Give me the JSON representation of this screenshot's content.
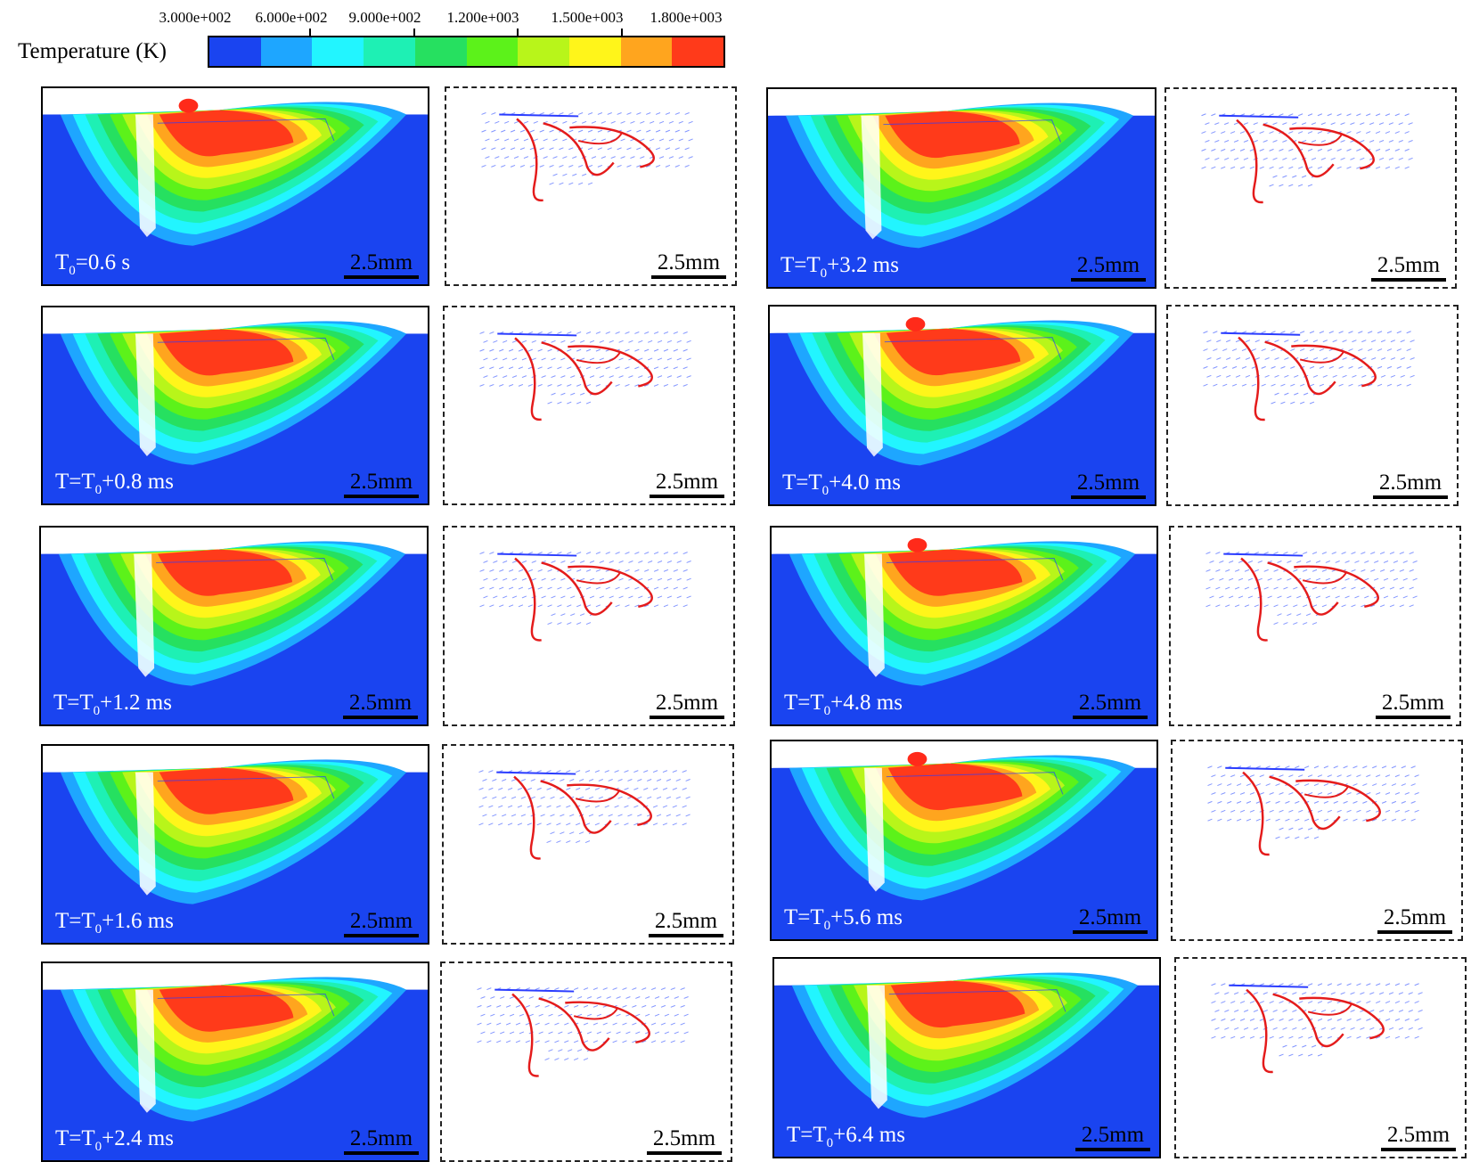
{
  "colorbar": {
    "title": "Temperature (K)",
    "ticks": [
      "3.000e+002",
      "6.000e+002",
      "9.000e+002",
      "1.200e+003",
      "1.500e+003",
      "1.800e+003"
    ],
    "colors": [
      "#1a44f0",
      "#1ea6ff",
      "#22f5ff",
      "#1ef0b4",
      "#26e060",
      "#5cf21a",
      "#b8f51a",
      "#fff51a",
      "#ffa51e",
      "#ff3a1a"
    ]
  },
  "scale_label": "2.5mm",
  "panels": [
    {
      "time": "T0=0.6 s",
      "prefix": "T",
      "sub": "0",
      "suffix": "=0.6 s"
    },
    {
      "time": "T=T0+0.8 ms",
      "prefix": "T=T",
      "sub": "0",
      "suffix": "+0.8 ms"
    },
    {
      "time": "T=T0+1.2 ms",
      "prefix": "T=T",
      "sub": "0",
      "suffix": "+1.2 ms"
    },
    {
      "time": "T=T0+1.6 ms",
      "prefix": "T=T",
      "sub": "0",
      "suffix": "+1.6 ms"
    },
    {
      "time": "T=T0+2.4 ms",
      "prefix": "T=T",
      "sub": "0",
      "suffix": "+2.4 ms"
    },
    {
      "time": "T=T0+3.2 ms",
      "prefix": "T=T",
      "sub": "0",
      "suffix": "+3.2 ms"
    },
    {
      "time": "T=T0+4.0 ms",
      "prefix": "T=T",
      "sub": "0",
      "suffix": "+4.0 ms"
    },
    {
      "time": "T=T0+4.8 ms",
      "prefix": "T=T",
      "sub": "0",
      "suffix": "+4.8 ms"
    },
    {
      "time": "T=T0+5.6 ms",
      "prefix": "T=T",
      "sub": "0",
      "suffix": "+5.6 ms"
    },
    {
      "time": "T=T0+6.4 ms",
      "prefix": "T=T",
      "sub": "0",
      "suffix": "+6.4 ms"
    }
  ]
}
